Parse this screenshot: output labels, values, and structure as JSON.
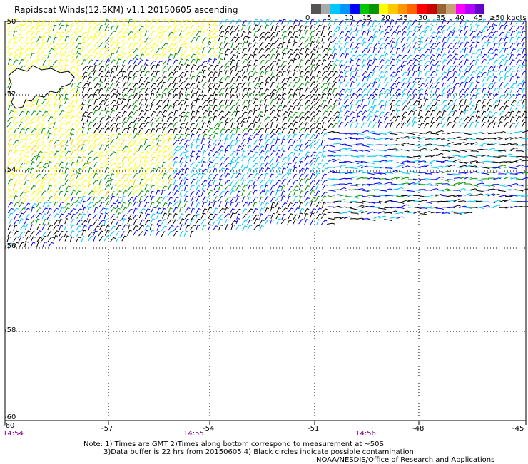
{
  "title": "Rapidscat Winds(12.5KM) v1.1 20150605 ascending",
  "legend": {
    "colors": [
      "#555555",
      "#aaaaaa",
      "#00c8ff",
      "#0096ff",
      "#0000ff",
      "#00c800",
      "#009600",
      "#ffff00",
      "#ffc800",
      "#ff9600",
      "#ff6400",
      "#ff0000",
      "#c80000",
      "#966432",
      "#c8a078",
      "#ff00ff",
      "#b400ff",
      "#6400c8"
    ],
    "labels": [
      "0",
      "5",
      "10",
      "15",
      "20",
      "25",
      "30",
      "35",
      "40",
      "45",
      "≥50 knots"
    ]
  },
  "axes": {
    "lat_labels": [
      "-50",
      "-52",
      "-54",
      "-56",
      "-58",
      "-60"
    ],
    "lon_labels": [
      "-57",
      "-54",
      "-51",
      "-48",
      "-45"
    ],
    "corner_lon": "-60"
  },
  "times": [
    "14:54",
    "14:55",
    "14:56"
  ],
  "notes": [
    "Note: 1) Times are GMT 2)Times along bottom correspond to measurement at ~50S",
    "3)Data buffer is 22 hrs from 20150605 4) Black circles indicate possible contamination",
    "NOAA/NESDIS/Office of Research and Applications"
  ],
  "map": {
    "lon_range": [
      -60,
      -45
    ],
    "lat_range": [
      -60,
      -50
    ],
    "land": "Falkland Islands",
    "palette": {
      "black": "#000000",
      "cyan": "#00c8ff",
      "blue": "#0000ff",
      "green": "#009600",
      "yellow": "#ffff00",
      "orange": "#ffc800",
      "gray": "#aaaaaa"
    }
  }
}
